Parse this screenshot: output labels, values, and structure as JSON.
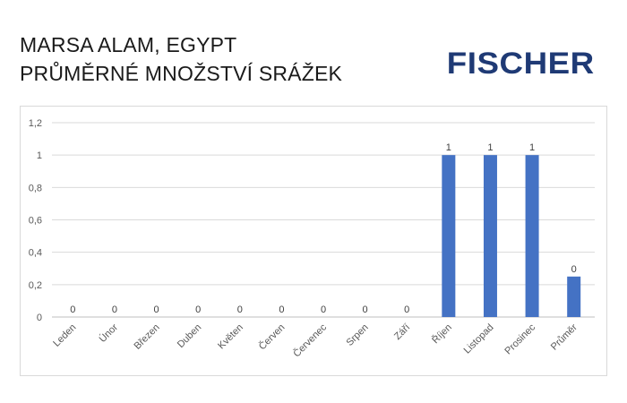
{
  "header": {
    "title_line1": "MARSA ALAM, EGYPT",
    "title_line2": "PRŮMĚRNÉ MNOŽSTVÍ SRÁŽEK",
    "logo_text": "FISCHER"
  },
  "colors": {
    "bar": "#4472c4",
    "logo": "#1f3a75",
    "grid": "#d9d9d9"
  },
  "chart_data": {
    "type": "bar",
    "categories": [
      "Leden",
      "Únor",
      "Březen",
      "Duben",
      "Květen",
      "Červen",
      "Červenec",
      "Srpen",
      "Září",
      "Říjen",
      "Listopad",
      "Prosinec",
      "Průměr"
    ],
    "values": [
      0,
      0,
      0,
      0,
      0,
      0,
      0,
      0,
      0,
      1,
      1,
      1,
      0.25
    ],
    "data_labels": [
      "0",
      "0",
      "0",
      "0",
      "0",
      "0",
      "0",
      "0",
      "0",
      "1",
      "1",
      "1",
      "0"
    ],
    "y_ticks": [
      "0",
      "0,2",
      "0,4",
      "0,6",
      "0,8",
      "1",
      "1,2"
    ],
    "ylim": [
      0,
      1.2
    ],
    "grid": true,
    "legend": "none"
  }
}
